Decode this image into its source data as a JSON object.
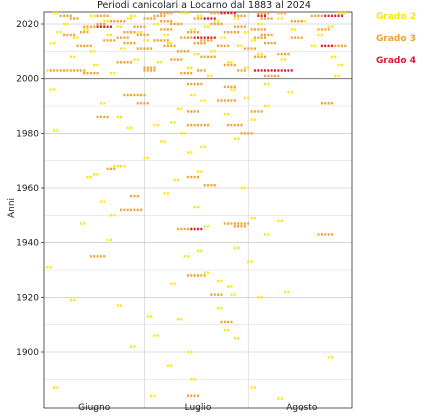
{
  "chart_data": {
    "type": "scatter",
    "title": "Periodi canicolari a Locarno dal 1883 al 2024",
    "xlabel": "",
    "ylabel": "Anni",
    "x_ticks": [
      "Giugno",
      "Luglio",
      "Agosto"
    ],
    "y_ticks": [
      1900,
      1920,
      1940,
      1960,
      1980,
      2000,
      2020
    ],
    "ylim": [
      1883,
      2025
    ],
    "xlim_days": [
      0,
      92
    ],
    "grid": "horizontal every 10 years, vertical at month boundaries",
    "legend_placement": "right",
    "series": [
      {
        "name": "Grado 2",
        "color": "#ffe600",
        "segments": [
          [
            2024,
            3,
            4
          ],
          [
            2024,
            41,
            43
          ],
          [
            2024,
            88,
            90
          ],
          [
            2023,
            14,
            15
          ],
          [
            2023,
            26,
            27
          ],
          [
            2023,
            46,
            47
          ],
          [
            2022,
            25,
            26
          ],
          [
            2022,
            57,
            58
          ],
          [
            2022,
            70,
            71
          ],
          [
            2021,
            18,
            19
          ],
          [
            2021,
            51,
            52
          ],
          [
            2021,
            77,
            78
          ],
          [
            2020,
            6,
            7
          ],
          [
            2020,
            33,
            34
          ],
          [
            2020,
            64,
            65
          ],
          [
            2019,
            22,
            23
          ],
          [
            2019,
            48,
            49
          ],
          [
            2019,
            85,
            86
          ],
          [
            2018,
            12,
            13
          ],
          [
            2018,
            44,
            45
          ],
          [
            2018,
            74,
            75
          ],
          [
            2017,
            4,
            5
          ],
          [
            2017,
            28,
            29
          ],
          [
            2017,
            60,
            61
          ],
          [
            2016,
            19,
            20
          ],
          [
            2016,
            36,
            37
          ],
          [
            2016,
            82,
            83
          ],
          [
            2015,
            9,
            10
          ],
          [
            2015,
            53,
            54
          ],
          [
            2014,
            30,
            31
          ],
          [
            2014,
            62,
            63
          ],
          [
            2013,
            2,
            3
          ],
          [
            2013,
            37,
            38
          ],
          [
            2012,
            58,
            59
          ],
          [
            2012,
            80,
            81
          ],
          [
            2011,
            23,
            24
          ],
          [
            2010,
            14,
            15
          ],
          [
            2010,
            50,
            51
          ],
          [
            2009,
            45,
            46
          ],
          [
            2009,
            64,
            65
          ],
          [
            2008,
            8,
            9
          ],
          [
            2008,
            86,
            87
          ],
          [
            2007,
            27,
            28
          ],
          [
            2007,
            71,
            72
          ],
          [
            2006,
            34,
            35
          ],
          [
            2006,
            55,
            56
          ],
          [
            2005,
            15,
            16
          ],
          [
            2005,
            88,
            89
          ],
          [
            2004,
            43,
            44
          ],
          [
            2004,
            60,
            61
          ],
          [
            2003,
            1,
            2
          ],
          [
            2002,
            20,
            21
          ],
          [
            2001,
            49,
            50
          ],
          [
            2001,
            87,
            88
          ],
          [
            1998,
            66,
            67
          ],
          [
            1996,
            2,
            3
          ],
          [
            1996,
            56,
            57
          ],
          [
            1995,
            73,
            74
          ],
          [
            1994,
            44,
            45
          ],
          [
            1993,
            60,
            61
          ],
          [
            1992,
            47,
            48
          ],
          [
            1991,
            17,
            18
          ],
          [
            1990,
            66,
            67
          ],
          [
            1989,
            40,
            41
          ],
          [
            1987,
            54,
            55
          ],
          [
            1986,
            22,
            23
          ],
          [
            1985,
            62,
            63
          ],
          [
            1984,
            38,
            39
          ],
          [
            1983,
            33,
            34
          ],
          [
            1982,
            25,
            26
          ],
          [
            1981,
            3,
            4
          ],
          [
            1980,
            41,
            42
          ],
          [
            1978,
            57,
            58
          ],
          [
            1977,
            35,
            36
          ],
          [
            1975,
            47,
            48
          ],
          [
            1973,
            43,
            44
          ],
          [
            1971,
            30,
            31
          ],
          [
            1968,
            21,
            22
          ],
          [
            1968,
            23,
            24
          ],
          [
            1966,
            46,
            47
          ],
          [
            1965,
            15,
            16
          ],
          [
            1964,
            13,
            14
          ],
          [
            1963,
            39,
            40
          ],
          [
            1960,
            59,
            60
          ],
          [
            1958,
            36,
            37
          ],
          [
            1955,
            17,
            18
          ],
          [
            1953,
            45,
            46
          ],
          [
            1950,
            20,
            21
          ],
          [
            1949,
            62,
            63
          ],
          [
            1948,
            70,
            71
          ],
          [
            1947,
            11,
            12
          ],
          [
            1946,
            48,
            49
          ],
          [
            1943,
            66,
            67
          ],
          [
            1941,
            19,
            20
          ],
          [
            1938,
            57,
            58
          ],
          [
            1937,
            46,
            47
          ],
          [
            1935,
            42,
            43
          ],
          [
            1933,
            61,
            62
          ],
          [
            1931,
            1,
            2
          ],
          [
            1929,
            48,
            49
          ],
          [
            1928,
            45,
            46
          ],
          [
            1926,
            52,
            53
          ],
          [
            1925,
            38,
            39
          ],
          [
            1924,
            55,
            56
          ],
          [
            1922,
            72,
            73
          ],
          [
            1921,
            56,
            57
          ],
          [
            1920,
            64,
            65
          ],
          [
            1919,
            8,
            9
          ],
          [
            1917,
            22,
            23
          ],
          [
            1916,
            52,
            53
          ],
          [
            1913,
            31,
            32
          ],
          [
            1912,
            40,
            41
          ],
          [
            1908,
            54,
            55
          ],
          [
            1906,
            33,
            34
          ],
          [
            1905,
            57,
            58
          ],
          [
            1902,
            26,
            27
          ],
          [
            1900,
            43,
            44
          ],
          [
            1898,
            85,
            86
          ],
          [
            1895,
            37,
            38
          ],
          [
            1890,
            44,
            45
          ],
          [
            1887,
            3,
            4
          ],
          [
            1887,
            62,
            63
          ],
          [
            1884,
            32,
            33
          ],
          [
            1883,
            70,
            71
          ]
        ]
      },
      {
        "name": "Grado 3",
        "color": "#f0a030",
        "segments": [
          [
            2024,
            35,
            38
          ],
          [
            2024,
            50,
            53
          ],
          [
            2024,
            64,
            67
          ],
          [
            2024,
            70,
            72
          ],
          [
            2023,
            5,
            8
          ],
          [
            2023,
            16,
            19
          ],
          [
            2023,
            33,
            36
          ],
          [
            2023,
            57,
            60
          ],
          [
            2023,
            80,
            83
          ],
          [
            2022,
            8,
            10
          ],
          [
            2022,
            30,
            33
          ],
          [
            2022,
            45,
            48
          ],
          [
            2022,
            65,
            68
          ],
          [
            2021,
            20,
            24
          ],
          [
            2021,
            35,
            38
          ],
          [
            2021,
            74,
            77
          ],
          [
            2020,
            16,
            18
          ],
          [
            2020,
            38,
            41
          ],
          [
            2020,
            50,
            53
          ],
          [
            2019,
            12,
            15
          ],
          [
            2019,
            27,
            30
          ],
          [
            2019,
            57,
            60
          ],
          [
            2018,
            35,
            38
          ],
          [
            2018,
            62,
            66
          ],
          [
            2018,
            82,
            85
          ],
          [
            2017,
            11,
            13
          ],
          [
            2017,
            24,
            27
          ],
          [
            2017,
            43,
            46
          ],
          [
            2017,
            54,
            58
          ],
          [
            2016,
            6,
            9
          ],
          [
            2016,
            28,
            31
          ],
          [
            2016,
            65,
            68
          ],
          [
            2015,
            22,
            25
          ],
          [
            2015,
            41,
            44
          ],
          [
            2015,
            63,
            66
          ],
          [
            2015,
            74,
            77
          ],
          [
            2014,
            18,
            21
          ],
          [
            2014,
            33,
            37
          ],
          [
            2014,
            47,
            50
          ],
          [
            2013,
            24,
            27
          ],
          [
            2013,
            45,
            48
          ],
          [
            2013,
            66,
            69
          ],
          [
            2012,
            10,
            14
          ],
          [
            2012,
            36,
            39
          ],
          [
            2012,
            52,
            55
          ],
          [
            2012,
            86,
            90
          ],
          [
            2011,
            28,
            32
          ],
          [
            2011,
            60,
            63
          ],
          [
            2010,
            40,
            43
          ],
          [
            2009,
            70,
            73
          ],
          [
            2008,
            47,
            51
          ],
          [
            2008,
            63,
            66
          ],
          [
            2007,
            38,
            41
          ],
          [
            2006,
            22,
            26
          ],
          [
            2005,
            54,
            57
          ],
          [
            2004,
            30,
            33
          ],
          [
            2003,
            2,
            12
          ],
          [
            2003,
            30,
            33
          ],
          [
            2003,
            46,
            48
          ],
          [
            2003,
            58,
            60
          ],
          [
            2002,
            12,
            16
          ],
          [
            2002,
            41,
            44
          ],
          [
            2001,
            66,
            70
          ],
          [
            1998,
            43,
            47
          ],
          [
            1997,
            54,
            57
          ],
          [
            1994,
            24,
            30
          ],
          [
            1992,
            52,
            57
          ],
          [
            1991,
            28,
            31
          ],
          [
            1991,
            83,
            86
          ],
          [
            1988,
            43,
            46
          ],
          [
            1988,
            62,
            65
          ],
          [
            1986,
            16,
            19
          ],
          [
            1983,
            43,
            49
          ],
          [
            1983,
            55,
            59
          ],
          [
            1980,
            59,
            62
          ],
          [
            1967,
            19,
            21
          ],
          [
            1964,
            43,
            46
          ],
          [
            1961,
            48,
            51
          ],
          [
            1957,
            26,
            28
          ],
          [
            1952,
            23,
            29
          ],
          [
            1947,
            54,
            61
          ],
          [
            1946,
            57,
            60
          ],
          [
            1945,
            40,
            44
          ],
          [
            1943,
            82,
            86
          ],
          [
            1935,
            14,
            18
          ],
          [
            1928,
            43,
            48
          ],
          [
            1921,
            50,
            53
          ],
          [
            1911,
            53,
            56
          ],
          [
            1884,
            43,
            46
          ]
        ]
      },
      {
        "name": "Grado 4",
        "color": "#e0182c",
        "segments": [
          [
            2024,
            53,
            57
          ],
          [
            2023,
            64,
            66
          ],
          [
            2023,
            84,
            89
          ],
          [
            2022,
            48,
            51
          ],
          [
            2019,
            16,
            20
          ],
          [
            2015,
            45,
            51
          ],
          [
            2012,
            83,
            86
          ],
          [
            2003,
            63,
            74
          ],
          [
            1945,
            44,
            47
          ]
        ]
      }
    ]
  }
}
